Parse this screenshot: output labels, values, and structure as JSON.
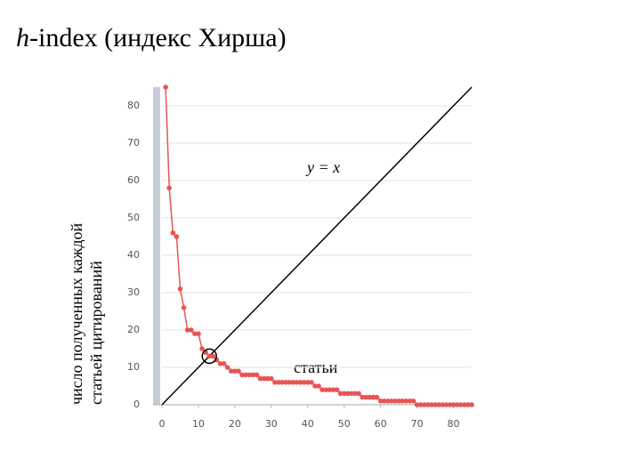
{
  "title_italic": "h",
  "title": "-index (индекс Хирша)",
  "chart_data": {
    "type": "line",
    "y_label_lines": [
      "число полученных каждой",
      "статьей цитирований"
    ],
    "annotations": [
      "y = x",
      "статьи"
    ],
    "x": [
      1,
      2,
      3,
      4,
      5,
      6,
      7,
      8,
      9,
      10,
      11,
      12,
      13,
      14,
      15,
      16,
      17,
      18,
      19,
      20,
      21,
      22,
      23,
      24,
      25,
      26,
      27,
      28,
      29,
      30,
      31,
      32,
      33,
      34,
      35,
      36,
      37,
      38,
      39,
      40,
      41,
      42,
      43,
      44,
      45,
      46,
      47,
      48,
      49,
      50,
      51,
      52,
      53,
      54,
      55,
      56,
      57,
      58,
      59,
      60,
      61,
      62,
      63,
      64,
      65,
      66,
      67,
      68,
      69,
      70,
      71,
      72,
      73,
      74,
      75,
      76,
      77,
      78,
      79,
      80,
      81,
      82,
      83,
      84,
      85
    ],
    "series": [
      {
        "color": "#e85555",
        "values": [
          85,
          58,
          46,
          45,
          31,
          26,
          20,
          20,
          19,
          19,
          15,
          14,
          13,
          13,
          12,
          11,
          11,
          10,
          9,
          9,
          9,
          8,
          8,
          8,
          8,
          8,
          7,
          7,
          7,
          7,
          6,
          6,
          6,
          6,
          6,
          6,
          6,
          6,
          6,
          6,
          6,
          5,
          5,
          4,
          4,
          4,
          4,
          4,
          3,
          3,
          3,
          3,
          3,
          3,
          2,
          2,
          2,
          2,
          2,
          1,
          1,
          1,
          1,
          1,
          1,
          1,
          1,
          1,
          1,
          0,
          0,
          0,
          0,
          0,
          0,
          0,
          0,
          0,
          0,
          0,
          0,
          0,
          0,
          0,
          0
        ]
      }
    ],
    "diagonal_color": "#000000",
    "xlim": [
      0,
      85
    ],
    "ylim": [
      0,
      85
    ],
    "xticks": [
      0,
      10,
      20,
      30,
      40,
      50,
      60,
      70,
      80
    ],
    "yticks": [
      0,
      10,
      20,
      30,
      40,
      50,
      60,
      70,
      80
    ],
    "grid": true
  }
}
